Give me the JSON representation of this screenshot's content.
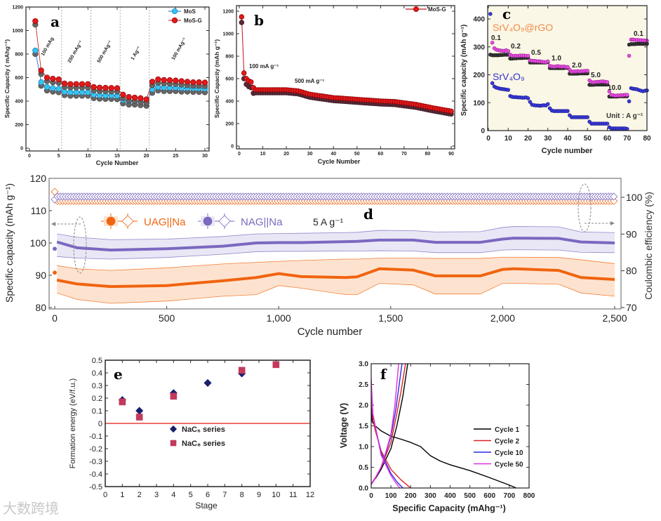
{
  "watermark": "大数跨境",
  "chart_data": [
    {
      "id": "a",
      "panel_label": "a",
      "type": "line",
      "title": "",
      "xlabel": "Cycle Number",
      "ylabel": "Specific Capacity ( mAhg⁻¹)",
      "xlim": [
        0,
        30
      ],
      "ylim": [
        0,
        1200
      ],
      "xticks": [
        "0",
        "5",
        "10",
        "15",
        "20",
        "25",
        "30"
      ],
      "yticks": [
        "0",
        "200",
        "400",
        "600",
        "800",
        "1000",
        "1200"
      ],
      "legend_position": "top-right",
      "annotations": [
        "100 mAg",
        "250 mAg⁻¹",
        "500 mAg⁻¹",
        "1 Ag⁻¹",
        "100 mAg⁻¹"
      ],
      "series": [
        {
          "name": "MoS",
          "color": "#33c6f0",
          "x": [
            1,
            2,
            3,
            4,
            5,
            6,
            7,
            8,
            9,
            10,
            11,
            12,
            13,
            14,
            15,
            16,
            17,
            18,
            19,
            20,
            21,
            22,
            23,
            24,
            25,
            26,
            27,
            28,
            29,
            30
          ],
          "y": [
            830,
            560,
            520,
            510,
            505,
            480,
            475,
            475,
            475,
            475,
            455,
            450,
            448,
            448,
            445,
            410,
            400,
            400,
            395,
            390,
            500,
            520,
            515,
            515,
            515,
            510,
            510,
            508,
            508,
            505
          ]
        },
        {
          "name": "MoS-G",
          "color": "#e3191c",
          "x": [
            1,
            2,
            3,
            4,
            5,
            6,
            7,
            8,
            9,
            10,
            11,
            12,
            13,
            14,
            15,
            16,
            17,
            18,
            19,
            20,
            21,
            22,
            23,
            24,
            25,
            26,
            27,
            28,
            29,
            30
          ],
          "y": [
            1080,
            660,
            600,
            590,
            585,
            550,
            545,
            545,
            545,
            545,
            520,
            515,
            513,
            512,
            510,
            455,
            435,
            430,
            425,
            415,
            565,
            585,
            580,
            578,
            575,
            570,
            565,
            560,
            560,
            558
          ]
        }
      ]
    },
    {
      "id": "b",
      "panel_label": "b",
      "type": "line",
      "title": "",
      "xlabel": "Cycle Number",
      "ylabel": "Specific Capacity (mAh g⁻¹)",
      "xlim": [
        0,
        90
      ],
      "ylim": [
        0,
        1200
      ],
      "xticks": [
        "0",
        "10",
        "20",
        "30",
        "40",
        "50",
        "60",
        "70",
        "80",
        "90"
      ],
      "yticks": [
        "0",
        "200",
        "400",
        "600",
        "800",
        "1000",
        "1200"
      ],
      "legend_position": "top-right",
      "annotations": [
        "100 mA g⁻¹",
        "500 mA g⁻¹"
      ],
      "series": [
        {
          "name": "MoS-G",
          "color": "#e3191c",
          "x": [
            1,
            2,
            3,
            4,
            5,
            6,
            7,
            20,
            25,
            30,
            40,
            50,
            60,
            66,
            75,
            82,
            90
          ],
          "y": [
            1150,
            650,
            600,
            580,
            570,
            520,
            500,
            500,
            490,
            460,
            430,
            415,
            400,
            395,
            370,
            340,
            310
          ]
        }
      ]
    },
    {
      "id": "c",
      "panel_label": "c",
      "type": "scatter",
      "title": "",
      "xlabel": "Cycle number",
      "ylabel": "Specific capacity (mAh g⁻¹)",
      "xlim": [
        0,
        80
      ],
      "ylim": [
        0,
        440
      ],
      "xticks": [
        "0",
        "10",
        "20",
        "30",
        "40",
        "50",
        "60",
        "70",
        "80"
      ],
      "yticks": [
        "0",
        "100",
        "200",
        "300",
        "400"
      ],
      "series_labels": [
        "SrV₄O₉@rGO",
        "SrV₄O₉"
      ],
      "rate_labels": [
        "0.1",
        "0.2",
        "0.5",
        "1.0",
        "2.0",
        "5.0",
        "10.0",
        "0.1"
      ],
      "unit_label": "Unit : A g⁻¹",
      "series": [
        {
          "name": "SrV₄O₉@rGO (charge)",
          "color": "#3a3a3a",
          "y": [
            272,
            270,
            270,
            270,
            270,
            271,
            271,
            272,
            272,
            272,
            258,
            258,
            259,
            259,
            260,
            260,
            260,
            261,
            261,
            261,
            244,
            244,
            244,
            244,
            244,
            244,
            244,
            244,
            244,
            245,
            224,
            224,
            224,
            224,
            224,
            224,
            224,
            224,
            225,
            225,
            204,
            204,
            204,
            204,
            204,
            205,
            205,
            205,
            205,
            205,
            164,
            164,
            164,
            165,
            165,
            165,
            165,
            165,
            165,
            165,
            122,
            122,
            122,
            122,
            122,
            123,
            123,
            123,
            123,
            123,
            308,
            310,
            310,
            310,
            311,
            311,
            311,
            311,
            311,
            311
          ]
        },
        {
          "name": "SrV₄O₉@rGO",
          "color": "#e64fe0",
          "y": [
            null,
            315,
            295,
            290,
            288,
            287,
            286,
            286,
            288,
            285,
            272,
            268,
            268,
            268,
            268,
            269,
            269,
            269,
            268,
            268,
            252,
            250,
            250,
            249,
            248,
            248,
            247,
            246,
            245,
            248,
            232,
            230,
            229,
            230,
            231,
            230,
            229,
            230,
            228,
            228,
            218,
            211,
            212,
            212,
            213,
            212,
            213,
            213,
            214,
            214,
            180,
            174,
            173,
            174,
            175,
            175,
            176,
            176,
            175,
            174,
            140,
            128,
            127,
            125,
            126,
            126,
            127,
            127,
            128,
            128,
            268,
            326,
            326,
            325,
            325,
            324,
            324,
            323,
            323,
            322
          ]
        },
        {
          "name": "SrV₄O₉",
          "color": "#3a3ad8",
          "y": [
            418,
            170,
            158,
            154,
            152,
            150,
            149,
            148,
            147,
            146,
            124,
            121,
            120,
            120,
            119,
            119,
            118,
            118,
            119,
            116,
            103,
            93,
            91,
            90,
            90,
            89,
            90,
            91,
            90,
            95,
            80,
            72,
            70,
            70,
            70,
            70,
            70,
            70,
            70,
            70,
            55,
            48,
            48,
            48,
            48,
            48,
            48,
            48,
            48,
            48,
            32,
            25,
            25,
            25,
            25,
            25,
            25,
            25,
            25,
            25,
            12,
            8,
            8,
            8,
            8,
            8,
            8,
            8,
            8,
            6,
            105,
            152,
            150,
            149,
            148,
            145,
            143,
            141,
            143,
            144
          ]
        }
      ]
    },
    {
      "id": "d",
      "panel_label": "d",
      "type": "line",
      "title": "",
      "xlabel": "Cycle number",
      "ylabel": "Specific capacity (mAh g⁻¹)",
      "y2label": "Coulombic efficiency (%)",
      "xlim": [
        0,
        2500
      ],
      "ylim": [
        80,
        120
      ],
      "y2lim": [
        70,
        104
      ],
      "xticks": [
        "0",
        "500",
        "1,000",
        "1,500",
        "2,000",
        "2,500"
      ],
      "yticks": [
        "80",
        "90",
        "100",
        "110",
        "120"
      ],
      "y2ticks": [
        "70",
        "80",
        "90",
        "100"
      ],
      "rate_label": "5 A g⁻¹",
      "legend_position": "top-left",
      "x": [
        10,
        100,
        250,
        500,
        750,
        900,
        1000,
        1100,
        1300,
        1350,
        1450,
        1600,
        1700,
        1900,
        2000,
        2050,
        2250,
        2350,
        2500
      ],
      "series": [
        {
          "name": "UAG||Na",
          "color": "#f0640f",
          "band_color": "#fde3cf",
          "first_point": 90.8,
          "first_ce": 101.5,
          "ce": 99.0,
          "mean": [
            88.5,
            87.3,
            86.5,
            86.8,
            88.3,
            89.3,
            90.5,
            89.6,
            89.3,
            89.5,
            92.0,
            91.6,
            89.8,
            89.8,
            91.8,
            92.0,
            91.5,
            89.3,
            88.7
          ],
          "upper": [
            93,
            92,
            91.5,
            92.3,
            93.5,
            94,
            94.3,
            94.6,
            95,
            95,
            95.3,
            95.3,
            95.2,
            95.2,
            95.6,
            95.6,
            95.5,
            94.8,
            93.6
          ],
          "lower": [
            84.5,
            82.5,
            81.3,
            82,
            83.5,
            84,
            86.8,
            86,
            84,
            84,
            87.5,
            87,
            84.2,
            84.2,
            87.5,
            87.5,
            87.2,
            84.5,
            83.5
          ]
        },
        {
          "name": "NAG||Na",
          "color": "#7b68c0",
          "band_color": "#e9e7f5",
          "first_point": 98.2,
          "first_ce": 99.4,
          "ce": 100.2,
          "mean": [
            100.3,
            98.5,
            97.8,
            98.2,
            99.0,
            100.0,
            100.1,
            100.1,
            100.4,
            100.5,
            100.9,
            100.9,
            100.2,
            100.2,
            101.2,
            101.5,
            101.4,
            100.3,
            100.0
          ],
          "upper": [
            102.8,
            101.8,
            101,
            101.2,
            102,
            102.8,
            102.9,
            103,
            103.2,
            103.3,
            103.9,
            103.8,
            103.4,
            103.5,
            104.8,
            105.1,
            105,
            103.4,
            103.2
          ],
          "lower": [
            95.8,
            95.3,
            95,
            95.5,
            96.5,
            97.3,
            97.4,
            97.4,
            97.5,
            97.5,
            97.6,
            97.5,
            97,
            97,
            97.8,
            97.9,
            97.8,
            97.1,
            97
          ]
        }
      ]
    },
    {
      "id": "e",
      "panel_label": "e",
      "type": "scatter",
      "title": "",
      "xlabel": "Stage",
      "ylabel": "Formation energy (eV/f.u.)",
      "xlim": [
        0,
        12
      ],
      "ylim": [
        -0.5,
        0.5
      ],
      "xticks": [
        "0",
        "1",
        "2",
        "3",
        "4",
        "5",
        "6",
        "7",
        "8",
        "9",
        "10",
        "11",
        "12"
      ],
      "yticks": [
        "-0.5",
        "-0.4",
        "-0.3",
        "-0.2",
        "-0.1",
        "0",
        "0.1",
        "0.2",
        "0.3",
        "0.4",
        "0.5"
      ],
      "zero_line_color": "#e8403a",
      "legend_position": "center",
      "series": [
        {
          "name": "NaC₆ series",
          "color": "#1b1f6b",
          "marker": "diamond",
          "x": [
            1,
            2,
            4,
            6,
            8
          ],
          "y": [
            0.185,
            0.1,
            0.24,
            0.32,
            0.395
          ]
        },
        {
          "name": "NaC₈ series",
          "color": "#c23a5c",
          "marker": "square",
          "x": [
            1,
            2,
            4,
            8,
            10
          ],
          "y": [
            0.17,
            0.05,
            0.215,
            0.42,
            0.465
          ]
        }
      ]
    },
    {
      "id": "f",
      "panel_label": "f",
      "type": "line",
      "title": "",
      "xlabel": "Specific Capacity (mAhg⁻¹)",
      "ylabel": "Voltage (V)",
      "xlim": [
        0,
        800
      ],
      "ylim": [
        0,
        3.0
      ],
      "xticks": [
        "0",
        "100",
        "200",
        "300",
        "400",
        "500",
        "600",
        "700",
        "800"
      ],
      "yticks": [
        "0.0",
        "0.5",
        "1.0",
        "1.5",
        "2.0",
        "2.5",
        "3.0"
      ],
      "legend_position": "right",
      "series": [
        {
          "name": "Cycle 1",
          "color": "#000000",
          "discharge": {
            "x": [
              0,
              5,
              20,
              50,
              100,
              150,
              200,
              250,
              300,
              350,
              400,
              500,
              600,
              700,
              735
            ],
            "y": [
              2.0,
              1.6,
              1.5,
              1.38,
              1.25,
              1.18,
              1.1,
              1.0,
              0.78,
              0.65,
              0.56,
              0.42,
              0.25,
              0.07,
              0
            ]
          },
          "charge": {
            "x": [
              0,
              25,
              50,
              75,
              100,
              130,
              160,
              185
            ],
            "y": [
              0.1,
              0.25,
              0.45,
              0.7,
              0.95,
              1.5,
              2.2,
              3.0
            ]
          }
        },
        {
          "name": "Cycle 2",
          "color": "#e02020",
          "discharge": {
            "x": [
              0,
              8,
              20,
              50,
              100,
              150,
              200
            ],
            "y": [
              2.3,
              1.7,
              1.4,
              0.9,
              0.45,
              0.2,
              0
            ]
          },
          "charge": {
            "x": [
              0,
              25,
              50,
              75,
              100,
              130,
              150,
              174
            ],
            "y": [
              0.1,
              0.28,
              0.5,
              0.8,
              1.1,
              1.8,
              2.3,
              3.0
            ]
          }
        },
        {
          "name": "Cycle 10",
          "color": "#2a2ae0",
          "discharge": {
            "x": [
              0,
              8,
              20,
              50,
              100,
              130,
              160
            ],
            "y": [
              2.5,
              1.8,
              1.5,
              0.85,
              0.35,
              0.15,
              0
            ]
          },
          "charge": {
            "x": [
              0,
              25,
              50,
              75,
              100,
              125,
              156
            ],
            "y": [
              0.08,
              0.27,
              0.5,
              0.85,
              1.25,
              1.9,
              3.0
            ]
          }
        },
        {
          "name": "Cycle 50",
          "color": "#e030e0",
          "discharge": {
            "x": [
              0,
              8,
              20,
              50,
              100,
              125,
              145
            ],
            "y": [
              2.65,
              1.8,
              1.5,
              0.8,
              0.3,
              0.12,
              0
            ]
          },
          "charge": {
            "x": [
              0,
              25,
              50,
              75,
              100,
              120,
              139
            ],
            "y": [
              0.08,
              0.27,
              0.5,
              0.88,
              1.3,
              2.0,
              3.0
            ]
          }
        }
      ]
    }
  ]
}
